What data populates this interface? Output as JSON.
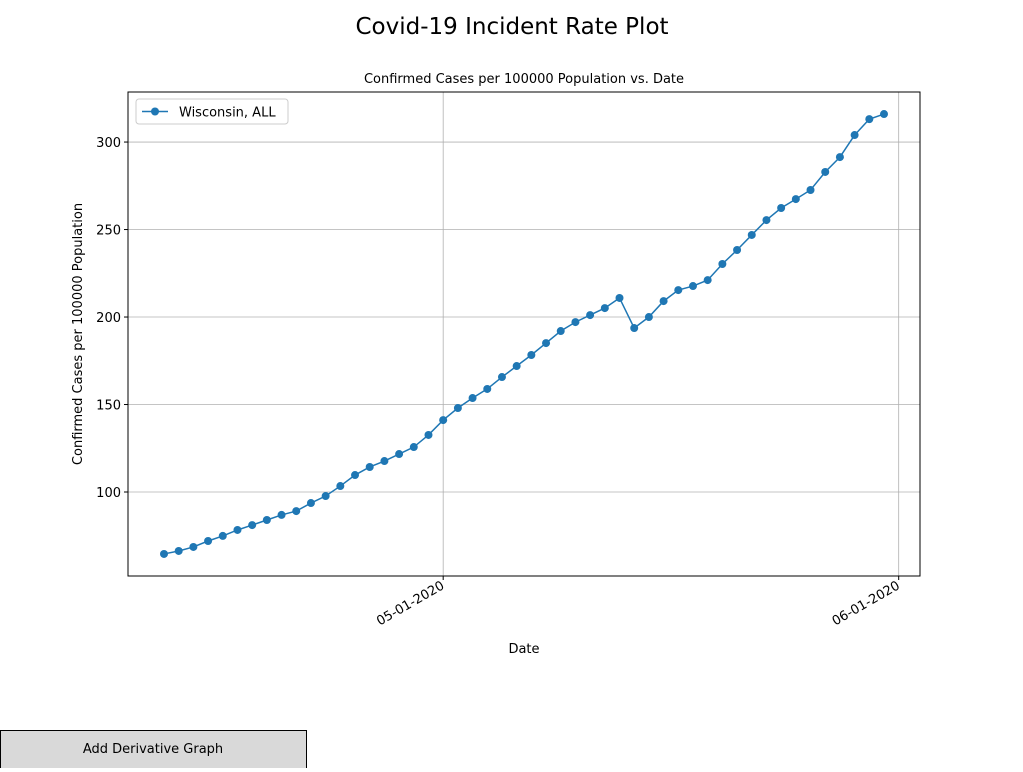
{
  "chart_data": {
    "type": "line",
    "title": "Covid-19 Incident Rate Plot",
    "subtitle": "Confirmed Cases per 100000 Population vs. Date",
    "xlabel": "Date",
    "ylabel": "Confirmed Cases per 100000 Population",
    "x": [
      "04-12-2020",
      "04-13-2020",
      "04-14-2020",
      "04-15-2020",
      "04-16-2020",
      "04-17-2020",
      "04-18-2020",
      "04-19-2020",
      "04-20-2020",
      "04-21-2020",
      "04-22-2020",
      "04-23-2020",
      "04-24-2020",
      "04-25-2020",
      "04-26-2020",
      "04-27-2020",
      "04-28-2020",
      "04-29-2020",
      "04-30-2020",
      "05-01-2020",
      "05-02-2020",
      "05-03-2020",
      "05-04-2020",
      "05-05-2020",
      "05-06-2020",
      "05-07-2020",
      "05-08-2020",
      "05-09-2020",
      "05-10-2020",
      "05-11-2020",
      "05-12-2020",
      "05-13-2020",
      "05-14-2020",
      "05-15-2020",
      "05-16-2020",
      "05-17-2020",
      "05-18-2020",
      "05-19-2020",
      "05-20-2020",
      "05-21-2020",
      "05-22-2020",
      "05-23-2020",
      "05-24-2020",
      "05-25-2020",
      "05-26-2020",
      "05-27-2020",
      "05-28-2020",
      "05-29-2020",
      "05-30-2020",
      "05-31-2020"
    ],
    "series": [
      {
        "name": "Wisconsin, ALL",
        "color": "#1f77b4",
        "values": [
          64.6,
          66.3,
          68.6,
          72,
          74.9,
          78.3,
          81.1,
          84,
          86.9,
          89.1,
          93.7,
          97.7,
          103.4,
          109.7,
          114.3,
          117.7,
          121.7,
          125.7,
          132.6,
          141.1,
          148,
          153.7,
          158.9,
          165.7,
          172,
          178.3,
          185.1,
          192,
          197.1,
          201.1,
          205.1,
          210.9,
          193.7,
          200,
          209.1,
          215.4,
          217.7,
          221.1,
          230.3,
          238.3,
          246.9,
          255.4,
          262.3,
          267.4,
          272.6,
          282.9,
          291.4,
          304,
          313.1,
          316
        ]
      }
    ],
    "xlim": [
      "04-09-2020 13:12",
      "06-02-2020 10:48"
    ],
    "xticks": [
      "05-01-2020",
      "06-01-2020"
    ],
    "ylim": [
      52,
      328.6
    ],
    "yticks": [
      100,
      150,
      200,
      250,
      300
    ],
    "grid": true,
    "legend": "upper left"
  },
  "button": {
    "label": "Add Derivative Graph"
  }
}
